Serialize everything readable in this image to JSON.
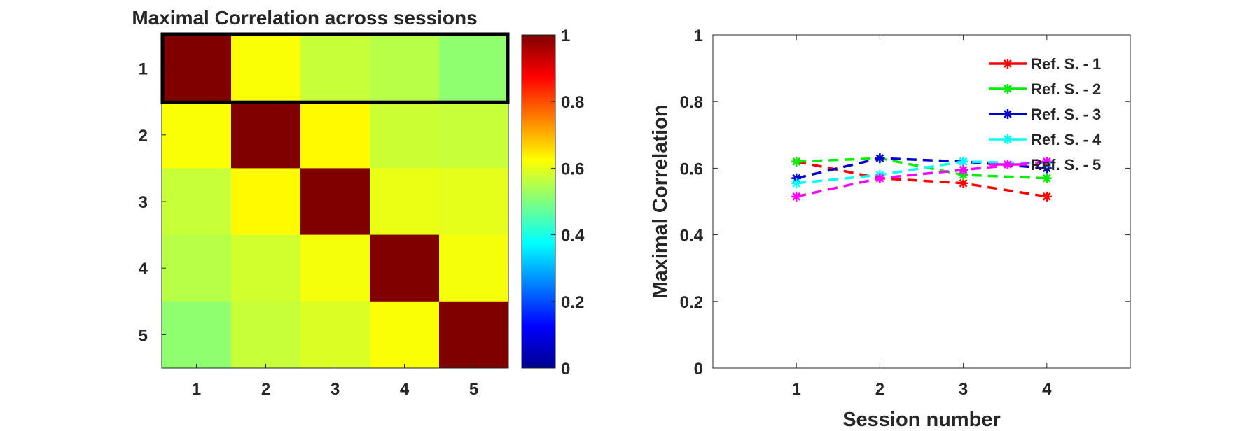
{
  "chart_data": [
    {
      "type": "heatmap",
      "title": "Maximal Correlation across sessions",
      "xlabel": "",
      "ylabel": "",
      "x_categories": [
        "1",
        "2",
        "3",
        "4",
        "5"
      ],
      "y_categories": [
        "1",
        "2",
        "3",
        "4",
        "5"
      ],
      "matrix": [
        [
          1.0,
          0.62,
          0.57,
          0.555,
          0.515
        ],
        [
          0.62,
          1.0,
          0.63,
          0.575,
          0.57
        ],
        [
          0.57,
          0.63,
          1.0,
          0.605,
          0.6
        ],
        [
          0.555,
          0.58,
          0.615,
          1.0,
          0.615
        ],
        [
          0.515,
          0.57,
          0.59,
          0.62,
          1.0
        ]
      ],
      "highlight_row": 1,
      "colormap": "jet",
      "colorbar": {
        "ticks": [
          "0",
          "0.2",
          "0.4",
          "0.6",
          "0.8",
          "1"
        ],
        "range": [
          0,
          1
        ]
      }
    },
    {
      "type": "line",
      "title": "",
      "xlabel": "Session number",
      "ylabel": "Maximal Correlation",
      "xlim": [
        0,
        5
      ],
      "ylim": [
        0,
        1
      ],
      "x_ticks": [
        "1",
        "2",
        "3",
        "4"
      ],
      "y_ticks": [
        "0",
        "0.2",
        "0.4",
        "0.6",
        "0.8",
        "1"
      ],
      "x": [
        1,
        2,
        3,
        4
      ],
      "legend_position": "top-right",
      "series": [
        {
          "name": "Ref. S. - 1",
          "color": "#ff0000",
          "values": [
            0.62,
            0.57,
            0.555,
            0.515
          ]
        },
        {
          "name": "Ref. S. - 2",
          "color": "#00ee00",
          "values": [
            0.62,
            0.63,
            0.58,
            0.57
          ]
        },
        {
          "name": "Ref. S. - 3",
          "color": "#0000cc",
          "values": [
            0.57,
            0.63,
            0.62,
            0.6
          ]
        },
        {
          "name": "Ref. S. - 4",
          "color": "#00ffff",
          "values": [
            0.555,
            0.58,
            0.62,
            0.615
          ]
        },
        {
          "name": "Ref. S. - 5",
          "color": "#ff00ff",
          "values": [
            0.515,
            0.57,
            0.595,
            0.62
          ]
        }
      ]
    }
  ]
}
